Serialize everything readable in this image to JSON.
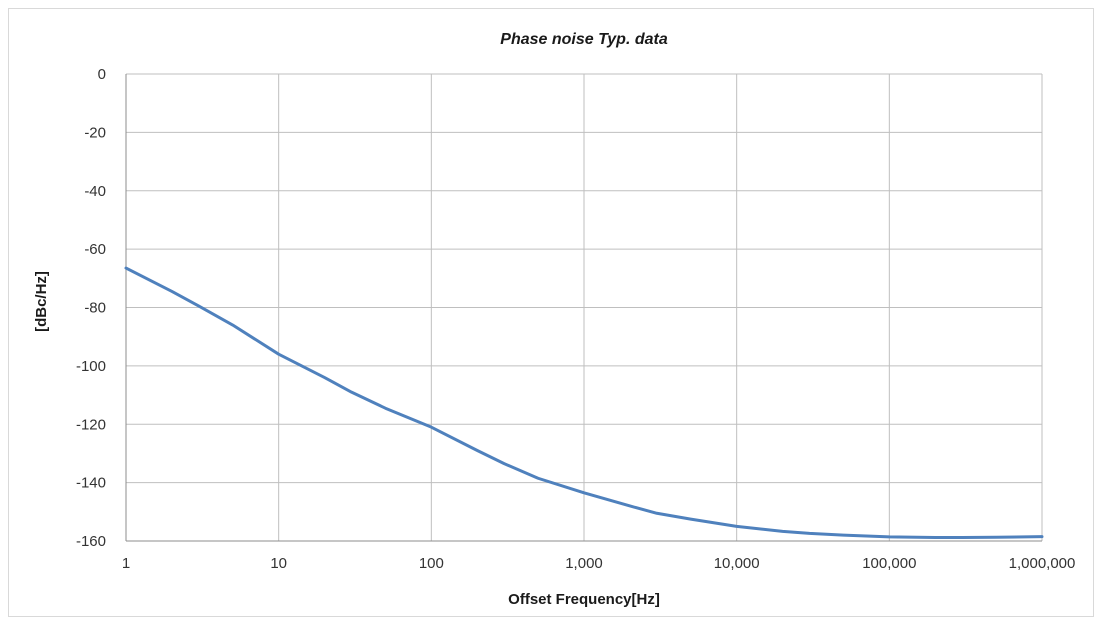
{
  "chart_data": {
    "type": "line",
    "title": "Phase noise Typ. data",
    "xlabel": "Offset Frequency[Hz]",
    "ylabel": "[dBc/Hz]",
    "x_scale": "log",
    "xlim": [
      1,
      1000000
    ],
    "ylim": [
      -160,
      0
    ],
    "grid": true,
    "x_ticks": [
      1,
      10,
      100,
      1000,
      10000,
      100000,
      1000000
    ],
    "x_tick_labels": [
      "1",
      "10",
      "100",
      "1,000",
      "10,000",
      "100,000",
      "1,000,000"
    ],
    "y_ticks": [
      0,
      -20,
      -40,
      -60,
      -80,
      -100,
      -120,
      -140,
      -160
    ],
    "y_tick_labels": [
      "0",
      "-20",
      "-40",
      "-60",
      "-80",
      "-100",
      "-120",
      "-140",
      "-160"
    ],
    "series": [
      {
        "color": "#4f81bd",
        "x": [
          1,
          2,
          3,
          5,
          10,
          20,
          30,
          50,
          100,
          200,
          300,
          500,
          1000,
          2000,
          3000,
          5000,
          10000,
          20000,
          30000,
          50000,
          100000,
          200000,
          300000,
          500000,
          1000000
        ],
        "y": [
          -66.5,
          -74.5,
          -79.5,
          -86,
          -96,
          -104,
          -109,
          -114.5,
          -121,
          -129,
          -133.5,
          -138.5,
          -143.5,
          -148,
          -150.5,
          -152.5,
          -155,
          -156.7,
          -157.4,
          -158,
          -158.6,
          -158.8,
          -158.8,
          -158.7,
          -158.5
        ]
      }
    ]
  }
}
